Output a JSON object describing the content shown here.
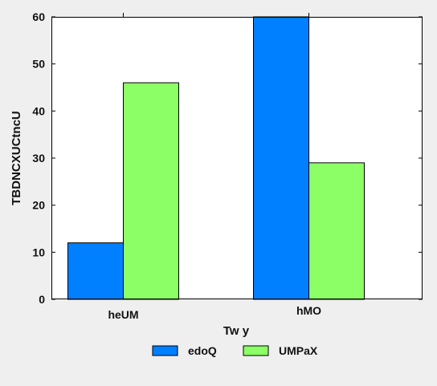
{
  "chart_data": {
    "type": "bar",
    "categories": [
      "heUM",
      "hMO"
    ],
    "series": [
      {
        "name": "edoQ",
        "values": [
          12,
          60
        ],
        "color": "#0080ff"
      },
      {
        "name": "UMPaX",
        "values": [
          46,
          29
        ],
        "color": "#8cff66"
      }
    ],
    "xlabel": "Tw y",
    "ylabel": "TBDNCXUCtncU",
    "ylim": [
      0,
      60
    ],
    "yticks": [
      0,
      10,
      20,
      30,
      40,
      50,
      60
    ],
    "legend_position": "bottom-center",
    "grid": false,
    "background": "#ffffff",
    "page_background": "#efefef"
  }
}
